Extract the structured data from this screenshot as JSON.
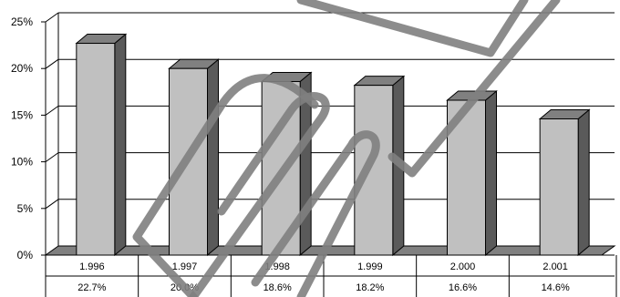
{
  "chart_data": {
    "type": "bar",
    "title": "",
    "xlabel": "",
    "ylabel": "",
    "ylim": [
      0,
      25
    ],
    "yticks": [
      "0%",
      "5%",
      "10%",
      "15%",
      "20%",
      "25%"
    ],
    "categories": [
      "1.996",
      "1.997",
      "1.998",
      "1.999",
      "2.000",
      "2.001"
    ],
    "values": [
      22.7,
      20.0,
      18.6,
      18.2,
      16.6,
      14.6
    ],
    "value_labels": [
      "22.7%",
      "20.0%",
      "18.6%",
      "18.2%",
      "16.6%",
      "14.6%"
    ],
    "grid": true,
    "legend": "none",
    "data_table": true
  },
  "colors": {
    "bar_front": "#c0c0c0",
    "bar_side": "#5a5a5a",
    "bar_top": "#808080",
    "floor": "#808080",
    "axis": "#000000",
    "paperclip_watermark": "#808080"
  },
  "watermark": {
    "icon": "paperclip-icon"
  }
}
